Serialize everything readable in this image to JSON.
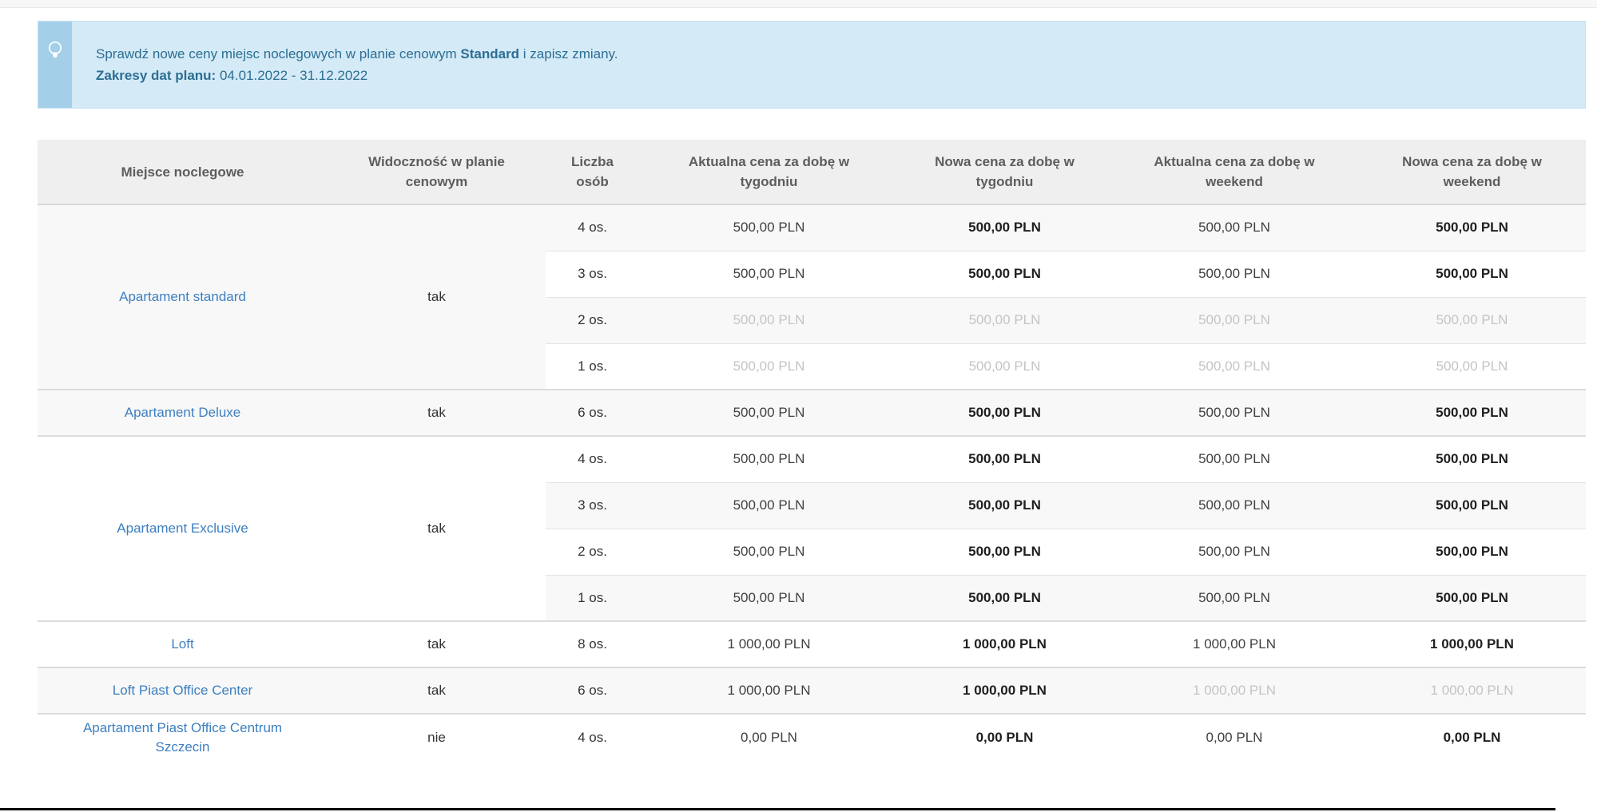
{
  "banner": {
    "icon": "lightbulb-icon",
    "line1": {
      "prefix": "Sprawdź nowe ceny miejsc noclegowych w planie cenowym ",
      "bold": "Standard",
      "suffix": " i zapisz zmiany."
    },
    "line2": {
      "label": "Zakresy dat planu:",
      "value": " 04.01.2022 - 31.12.2022"
    }
  },
  "colors": {
    "banner_strip": "#a3cfe9",
    "banner_bg": "#d4eaf6",
    "banner_text": "#2c6e93",
    "link": "#3d7fc1",
    "header_bg": "#efefef",
    "zebra_row": "#f8f8f8",
    "muted_price": "#c4c4c4",
    "bottom_frame": "#000000"
  },
  "table": {
    "headers": [
      "Miejsce noclegowe",
      "Widoczność w planie\ncenowym",
      "Liczba\nosób",
      "Aktualna cena za dobę w\ntygodniu",
      "Nowa cena za dobę w\ntygodniu",
      "Aktualna cena za dobę w\nweekend",
      "Nowa cena za dobę w\nweekend"
    ],
    "groups": [
      {
        "name": "Apartament standard",
        "visibility": "tak",
        "rows": [
          {
            "persons": "4 os.",
            "current_week": "500,00 PLN",
            "new_week": "500,00 PLN",
            "current_weekend": "500,00 PLN",
            "new_weekend": "500,00 PLN",
            "muted_week": false,
            "muted_weekend": false
          },
          {
            "persons": "3 os.",
            "current_week": "500,00 PLN",
            "new_week": "500,00 PLN",
            "current_weekend": "500,00 PLN",
            "new_weekend": "500,00 PLN",
            "muted_week": false,
            "muted_weekend": false
          },
          {
            "persons": "2 os.",
            "current_week": "500,00 PLN",
            "new_week": "500,00 PLN",
            "current_weekend": "500,00 PLN",
            "new_weekend": "500,00 PLN",
            "muted_week": true,
            "muted_weekend": true
          },
          {
            "persons": "1 os.",
            "current_week": "500,00 PLN",
            "new_week": "500,00 PLN",
            "current_weekend": "500,00 PLN",
            "new_weekend": "500,00 PLN",
            "muted_week": true,
            "muted_weekend": true
          }
        ]
      },
      {
        "name": "Apartament Deluxe",
        "visibility": "tak",
        "rows": [
          {
            "persons": "6 os.",
            "current_week": "500,00 PLN",
            "new_week": "500,00 PLN",
            "current_weekend": "500,00 PLN",
            "new_weekend": "500,00 PLN",
            "muted_week": false,
            "muted_weekend": false
          }
        ]
      },
      {
        "name": "Apartament Exclusive",
        "visibility": "tak",
        "rows": [
          {
            "persons": "4 os.",
            "current_week": "500,00 PLN",
            "new_week": "500,00 PLN",
            "current_weekend": "500,00 PLN",
            "new_weekend": "500,00 PLN",
            "muted_week": false,
            "muted_weekend": false
          },
          {
            "persons": "3 os.",
            "current_week": "500,00 PLN",
            "new_week": "500,00 PLN",
            "current_weekend": "500,00 PLN",
            "new_weekend": "500,00 PLN",
            "muted_week": false,
            "muted_weekend": false
          },
          {
            "persons": "2 os.",
            "current_week": "500,00 PLN",
            "new_week": "500,00 PLN",
            "current_weekend": "500,00 PLN",
            "new_weekend": "500,00 PLN",
            "muted_week": false,
            "muted_weekend": false
          },
          {
            "persons": "1 os.",
            "current_week": "500,00 PLN",
            "new_week": "500,00 PLN",
            "current_weekend": "500,00 PLN",
            "new_weekend": "500,00 PLN",
            "muted_week": false,
            "muted_weekend": false
          }
        ]
      },
      {
        "name": "Loft",
        "visibility": "tak",
        "rows": [
          {
            "persons": "8 os.",
            "current_week": "1 000,00 PLN",
            "new_week": "1 000,00 PLN",
            "current_weekend": "1 000,00 PLN",
            "new_weekend": "1 000,00 PLN",
            "muted_week": false,
            "muted_weekend": false
          }
        ]
      },
      {
        "name": "Loft Piast Office Center",
        "visibility": "tak",
        "rows": [
          {
            "persons": "6 os.",
            "current_week": "1 000,00 PLN",
            "new_week": "1 000,00 PLN",
            "current_weekend": "1 000,00 PLN",
            "new_weekend": "1 000,00 PLN",
            "muted_week": false,
            "muted_weekend": true
          }
        ]
      },
      {
        "name": "Apartament Piast Office Centrum Szczecin",
        "visibility": "nie",
        "rows": [
          {
            "persons": "4 os.",
            "current_week": "0,00 PLN",
            "new_week": "0,00 PLN",
            "current_weekend": "0,00 PLN",
            "new_weekend": "0,00 PLN",
            "muted_week": false,
            "muted_weekend": false
          }
        ]
      }
    ]
  }
}
